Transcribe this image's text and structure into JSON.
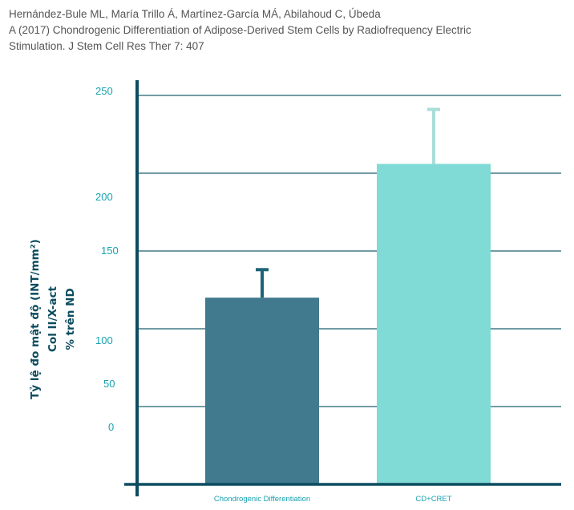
{
  "citation": {
    "line1": "Hernández-Bule ML, María Trillo Á, Martínez-García MÁ, Abilahoud C, Úbeda",
    "line2": "A (2017) Chondrogenic Differentiation of Adipose-Derived Stem Cells by Radiofrequency Electric",
    "line3": "Stimulation. J Stem Cell Res Ther 7: 407"
  },
  "chart_data": {
    "type": "bar",
    "title": "",
    "xlabel": "",
    "ylabel_lines": [
      "Tỷ lệ đo mật độ (INT/mm²)",
      "Col II/X-act",
      "% trên ND"
    ],
    "categories": [
      "Chondrogenic Differentiation",
      "CD+CRET"
    ],
    "values": [
      120,
      206
    ],
    "error_upper": [
      138,
      241
    ],
    "ylim": [
      0,
      250
    ],
    "gridline_values": [
      50,
      100,
      150,
      200,
      250
    ],
    "tick_labels": [
      "250",
      "200",
      "150",
      "100",
      "50",
      "0"
    ],
    "grid": true,
    "colors": {
      "bar1": "#41798e",
      "bar2": "#80dad6",
      "err1": "#1f6378",
      "err2": "#a9ddd9",
      "axis": "#0b4c5f",
      "grid": "#1f5f6f",
      "label": "#17a2b0"
    }
  }
}
